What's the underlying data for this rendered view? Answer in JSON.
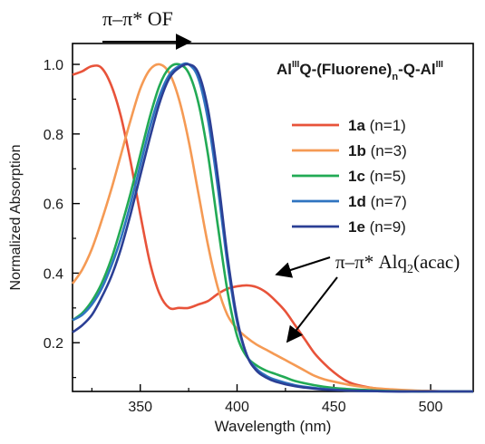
{
  "chart_data": {
    "type": "line",
    "title": "",
    "xlabel": "Wavelength (nm)",
    "ylabel": "Normalized Absorption",
    "xlim": [
      315,
      522
    ],
    "ylim": [
      0.06,
      1.06
    ],
    "x_ticks": [
      350,
      400,
      450,
      500
    ],
    "y_ticks": [
      0.2,
      0.4,
      0.6,
      0.8,
      1.0
    ],
    "x_tick_labels": [
      "350",
      "400",
      "450",
      "500"
    ],
    "y_tick_labels": [
      "0.2",
      "0.4",
      "0.6",
      "0.8",
      "1.0"
    ],
    "grid": false,
    "legend_placement": "top-right",
    "legend_title": {
      "prefix": "Al",
      "sup1": "III",
      "middle": "Q-(Fluorene)",
      "sub": "n",
      "suffix": "-Q-Al",
      "sup2": "III"
    },
    "annotations": {
      "top_arrow_label": "π–π* OF",
      "alq_label_main": "π–π* Alq",
      "alq_label_sub": "2",
      "alq_label_tail": "(acac)"
    },
    "series": [
      {
        "id": "1a",
        "bold": "1a",
        "rest": " (n=1)",
        "color": "#e8533a",
        "x": [
          315,
          320,
          325,
          330,
          335,
          340,
          345,
          350,
          355,
          360,
          365,
          370,
          375,
          380,
          385,
          390,
          395,
          400,
          405,
          410,
          415,
          420,
          425,
          430,
          435,
          440,
          445,
          450,
          455,
          460,
          470,
          480,
          490,
          500,
          510,
          522
        ],
        "y": [
          0.97,
          0.98,
          0.995,
          0.99,
          0.94,
          0.85,
          0.72,
          0.57,
          0.43,
          0.34,
          0.3,
          0.3,
          0.3,
          0.31,
          0.32,
          0.34,
          0.355,
          0.362,
          0.365,
          0.36,
          0.345,
          0.32,
          0.29,
          0.25,
          0.21,
          0.17,
          0.14,
          0.115,
          0.095,
          0.082,
          0.07,
          0.064,
          0.062,
          0.061,
          0.06,
          0.06
        ]
      },
      {
        "id": "1b",
        "bold": "1b",
        "rest": " (n=3)",
        "color": "#f59a54",
        "x": [
          315,
          320,
          325,
          330,
          335,
          340,
          345,
          350,
          355,
          360,
          365,
          370,
          375,
          380,
          385,
          390,
          395,
          400,
          405,
          410,
          415,
          420,
          425,
          430,
          435,
          440,
          445,
          450,
          460,
          470,
          480,
          490,
          500,
          510,
          522
        ],
        "y": [
          0.37,
          0.41,
          0.47,
          0.55,
          0.64,
          0.74,
          0.84,
          0.93,
          0.985,
          1.0,
          0.975,
          0.9,
          0.78,
          0.63,
          0.48,
          0.36,
          0.28,
          0.24,
          0.215,
          0.195,
          0.18,
          0.165,
          0.15,
          0.135,
          0.12,
          0.105,
          0.095,
          0.088,
          0.077,
          0.07,
          0.066,
          0.063,
          0.061,
          0.06,
          0.06
        ]
      },
      {
        "id": "1c",
        "bold": "1c",
        "rest": " (n=5)",
        "color": "#22aa55",
        "x": [
          315,
          320,
          325,
          330,
          335,
          340,
          345,
          350,
          355,
          360,
          365,
          370,
          375,
          380,
          385,
          390,
          395,
          400,
          405,
          410,
          415,
          420,
          425,
          430,
          440,
          450,
          460,
          470,
          480,
          490,
          500,
          510,
          522
        ],
        "y": [
          0.265,
          0.285,
          0.32,
          0.37,
          0.44,
          0.53,
          0.63,
          0.74,
          0.85,
          0.94,
          0.99,
          1.0,
          0.975,
          0.89,
          0.74,
          0.54,
          0.35,
          0.22,
          0.16,
          0.135,
          0.12,
          0.11,
          0.1,
          0.09,
          0.078,
          0.07,
          0.066,
          0.063,
          0.061,
          0.06,
          0.06,
          0.06,
          0.06
        ]
      },
      {
        "id": "1d",
        "bold": "1d",
        "rest": " (n=7)",
        "color": "#2f74c0",
        "x": [
          315,
          320,
          325,
          330,
          335,
          340,
          345,
          350,
          355,
          360,
          365,
          370,
          375,
          380,
          385,
          390,
          395,
          400,
          405,
          410,
          415,
          420,
          430,
          440,
          450,
          460,
          470,
          480,
          490,
          500,
          510,
          522
        ],
        "y": [
          0.265,
          0.28,
          0.31,
          0.355,
          0.42,
          0.5,
          0.6,
          0.71,
          0.82,
          0.91,
          0.97,
          0.995,
          1.0,
          0.96,
          0.84,
          0.65,
          0.43,
          0.26,
          0.165,
          0.125,
          0.105,
          0.093,
          0.078,
          0.07,
          0.065,
          0.062,
          0.061,
          0.06,
          0.06,
          0.06,
          0.06,
          0.06
        ]
      },
      {
        "id": "1e",
        "bold": "1e",
        "rest": " (n=9)",
        "color": "#2b3f95",
        "x": [
          315,
          320,
          325,
          330,
          335,
          340,
          345,
          350,
          355,
          360,
          365,
          370,
          375,
          380,
          385,
          390,
          395,
          400,
          405,
          410,
          415,
          420,
          430,
          440,
          450,
          460,
          470,
          480,
          490,
          500,
          510,
          522
        ],
        "y": [
          0.23,
          0.25,
          0.28,
          0.33,
          0.39,
          0.47,
          0.57,
          0.68,
          0.79,
          0.89,
          0.96,
          0.99,
          1.0,
          0.975,
          0.87,
          0.68,
          0.45,
          0.27,
          0.165,
          0.12,
          0.1,
          0.088,
          0.075,
          0.068,
          0.064,
          0.062,
          0.061,
          0.06,
          0.06,
          0.06,
          0.06,
          0.06
        ]
      }
    ]
  }
}
